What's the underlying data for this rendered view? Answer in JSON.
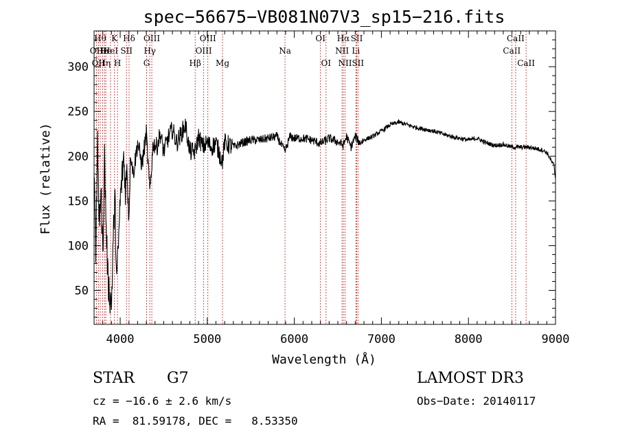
{
  "chart_data": {
    "type": "line",
    "title": "spec−56675−VB081N07V3_sp15−216.fits",
    "xlabel": "Wavelength (Å)",
    "ylabel": "Flux (relative)",
    "xlim": [
      3700,
      9000
    ],
    "ylim": [
      12,
      340
    ],
    "xticks": [
      4000,
      5000,
      6000,
      7000,
      8000,
      9000
    ],
    "yticks": [
      50,
      100,
      150,
      200,
      250,
      300
    ],
    "grid": false,
    "series": [
      {
        "name": "flux",
        "x": [
          3700,
          3720,
          3740,
          3760,
          3780,
          3800,
          3820,
          3840,
          3860,
          3880,
          3900,
          3920,
          3940,
          3960,
          3980,
          4000,
          4020,
          4040,
          4060,
          4080,
          4100,
          4120,
          4150,
          4200,
          4250,
          4300,
          4340,
          4380,
          4420,
          4460,
          4500,
          4550,
          4600,
          4650,
          4700,
          4750,
          4800,
          4861,
          4900,
          4950,
          5000,
          5050,
          5100,
          5150,
          5175,
          5200,
          5300,
          5400,
          5500,
          5600,
          5700,
          5800,
          5893,
          5950,
          6000,
          6100,
          6200,
          6300,
          6400,
          6500,
          6563,
          6600,
          6650,
          6700,
          6750,
          6800,
          6900,
          7000,
          7100,
          7200,
          7300,
          7400,
          7500,
          7600,
          7700,
          7800,
          7900,
          8000,
          8100,
          8200,
          8300,
          8400,
          8500,
          8600,
          8700,
          8800,
          8850,
          8900,
          8950,
          8980,
          9000
        ],
        "values": [
          175,
          95,
          210,
          130,
          160,
          90,
          200,
          120,
          60,
          45,
          35,
          110,
          150,
          60,
          100,
          150,
          175,
          200,
          165,
          185,
          130,
          205,
          180,
          215,
          190,
          225,
          160,
          215,
          210,
          225,
          205,
          220,
          230,
          215,
          225,
          235,
          205,
          205,
          222,
          210,
          215,
          210,
          215,
          200,
          195,
          215,
          210,
          215,
          218,
          218,
          220,
          222,
          205,
          222,
          220,
          220,
          218,
          214,
          220,
          216,
          212,
          222,
          210,
          222,
          215,
          218,
          222,
          228,
          235,
          238,
          235,
          232,
          230,
          228,
          225,
          222,
          220,
          218,
          220,
          215,
          212,
          213,
          210,
          210,
          210,
          208,
          207,
          204,
          195,
          190,
          175
        ]
      }
    ],
    "lines": [
      {
        "x": 3727,
        "label": "OII",
        "row": 2
      },
      {
        "x": 3750,
        "label": "OII",
        "row": 3
      },
      {
        "x": 3771,
        "label": "Hθ",
        "row": 1
      },
      {
        "x": 3798,
        "label": "He",
        "row": 2
      },
      {
        "x": 3820,
        "label": "Hη",
        "row": 3
      },
      {
        "x": 3835,
        "label": "He",
        "row": 2
      },
      {
        "x": 3889,
        "label": "HeI",
        "row": 2
      },
      {
        "x": 3934,
        "label": "K",
        "row": 1
      },
      {
        "x": 3969,
        "label": "H",
        "row": 3
      },
      {
        "x": 4072,
        "label": "SII",
        "row": 2
      },
      {
        "x": 4102,
        "label": "Hδ",
        "row": 1
      },
      {
        "x": 4304,
        "label": "G",
        "row": 3
      },
      {
        "x": 4340,
        "label": "Hγ",
        "row": 2
      },
      {
        "x": 4363,
        "label": "OIII",
        "row": 1
      },
      {
        "x": 4861,
        "label": "Hβ",
        "row": 3
      },
      {
        "x": 4959,
        "label": "OIII",
        "row": 2
      },
      {
        "x": 5007,
        "label": "OIII",
        "row": 1
      },
      {
        "x": 5175,
        "label": "Mg",
        "row": 3
      },
      {
        "x": 5893,
        "label": "Na",
        "row": 2
      },
      {
        "x": 6300,
        "label": "OI",
        "row": 1
      },
      {
        "x": 6364,
        "label": "OI",
        "row": 3
      },
      {
        "x": 6548,
        "label": "NII",
        "row": 2
      },
      {
        "x": 6563,
        "label": "Hα",
        "row": 1
      },
      {
        "x": 6583,
        "label": "NII",
        "row": 3
      },
      {
        "x": 6707,
        "label": "Li",
        "row": 2
      },
      {
        "x": 6717,
        "label": "SII",
        "row": 1
      },
      {
        "x": 6731,
        "label": "SII",
        "row": 3
      },
      {
        "x": 8498,
        "label": "CaII",
        "row": 2
      },
      {
        "x": 8542,
        "label": "CaII",
        "row": 1
      },
      {
        "x": 8662,
        "label": "CaII",
        "row": 3
      }
    ]
  },
  "info": {
    "object_class": "STAR",
    "subclass": "G7",
    "survey": "LAMOST DR3",
    "redshift": "cz = −16.6 ± 2.6 km/s",
    "obs_date": "Obs−Date: 20140117",
    "coords": "RA =  81.59178, DEC =   8.53350"
  },
  "colors": {
    "spectrum": "#000000",
    "line_markers": "#b22222",
    "background": "#ffffff"
  }
}
